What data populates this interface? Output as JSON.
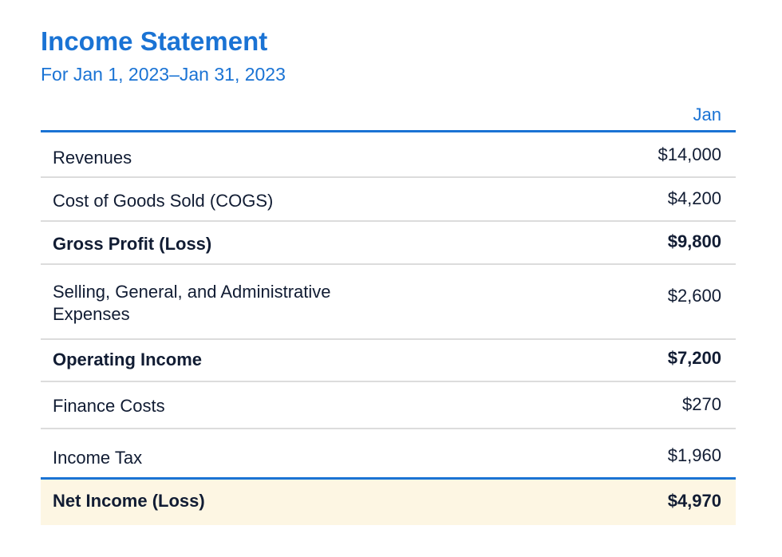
{
  "header": {
    "title": "Income Statement",
    "subtitle": "For Jan 1, 2023–Jan 31, 2023"
  },
  "table": {
    "column_header": "Jan",
    "rows": [
      {
        "label": "Revenues",
        "value": "$14,000",
        "bold": false
      },
      {
        "label": "Cost of Goods Sold (COGS)",
        "value": "$4,200",
        "bold": false
      },
      {
        "label": "Gross Profit (Loss)",
        "value": "$9,800",
        "bold": true
      },
      {
        "label": "Selling, General, and Administrative Expenses",
        "value": "$2,600",
        "bold": false
      },
      {
        "label": "Operating Income",
        "value": "$7,200",
        "bold": true
      },
      {
        "label": "Finance Costs",
        "value": "$270",
        "bold": false
      },
      {
        "label": "Income Tax",
        "value": "$1,960",
        "bold": false
      },
      {
        "label": "Net Income (Loss)",
        "value": "$4,970",
        "bold": true
      }
    ]
  },
  "colors": {
    "accent": "#1a73d4",
    "text": "#111c33",
    "divider": "#dcdcdc",
    "highlight_row": "#fdf6e3"
  }
}
